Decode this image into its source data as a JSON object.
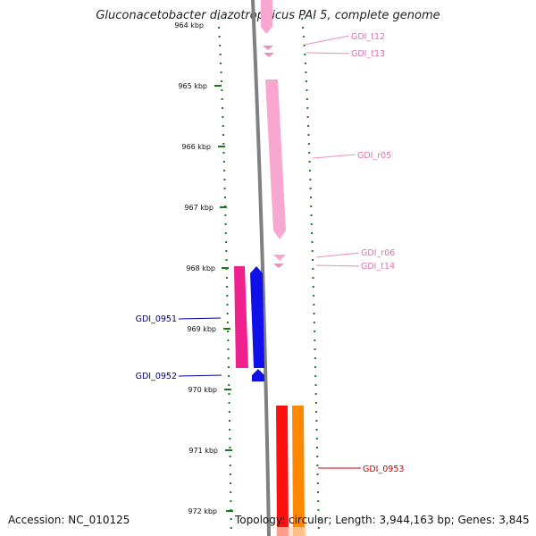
{
  "title": "Gluconacetobacter diazotrophicus PAI 5, complete genome",
  "footer": {
    "accession_label": "Accession: NC_010125",
    "topology_label": "Topology: circular; Length: 3,944,163 bp; Genes: 3,845"
  },
  "colors": {
    "backbone": "#808080",
    "tick": "#1a7a1a",
    "trna": "#f08cc0",
    "rrna": "#f8a8d0",
    "cds_forward_pink": "#f0208c",
    "cds_blue": "#1010e8",
    "cds_red": "#ff1010",
    "cds_orange": "#ff8800",
    "label_blue": "#000090",
    "label_pink": "#e070b0",
    "label_red": "#cc0000"
  },
  "scale_ticks": [
    {
      "label": "964 kbp"
    },
    {
      "label": "965 kbp"
    },
    {
      "label": "966 kbp"
    },
    {
      "label": "967 kbp"
    },
    {
      "label": "968 kbp"
    },
    {
      "label": "969 kbp"
    },
    {
      "label": "970 kbp"
    },
    {
      "label": "971 kbp"
    },
    {
      "label": "972 kbp"
    }
  ],
  "features": [
    {
      "name": "GDI_t12",
      "type": "tRNA"
    },
    {
      "name": "GDI_t13",
      "type": "tRNA"
    },
    {
      "name": "GDI_r05",
      "type": "rRNA"
    },
    {
      "name": "GDI_r06",
      "type": "rRNA"
    },
    {
      "name": "GDI_t14",
      "type": "tRNA"
    },
    {
      "name": "GDI_0951",
      "type": "CDS"
    },
    {
      "name": "GDI_0952",
      "type": "CDS"
    },
    {
      "name": "GDI_0953",
      "type": "CDS"
    }
  ]
}
